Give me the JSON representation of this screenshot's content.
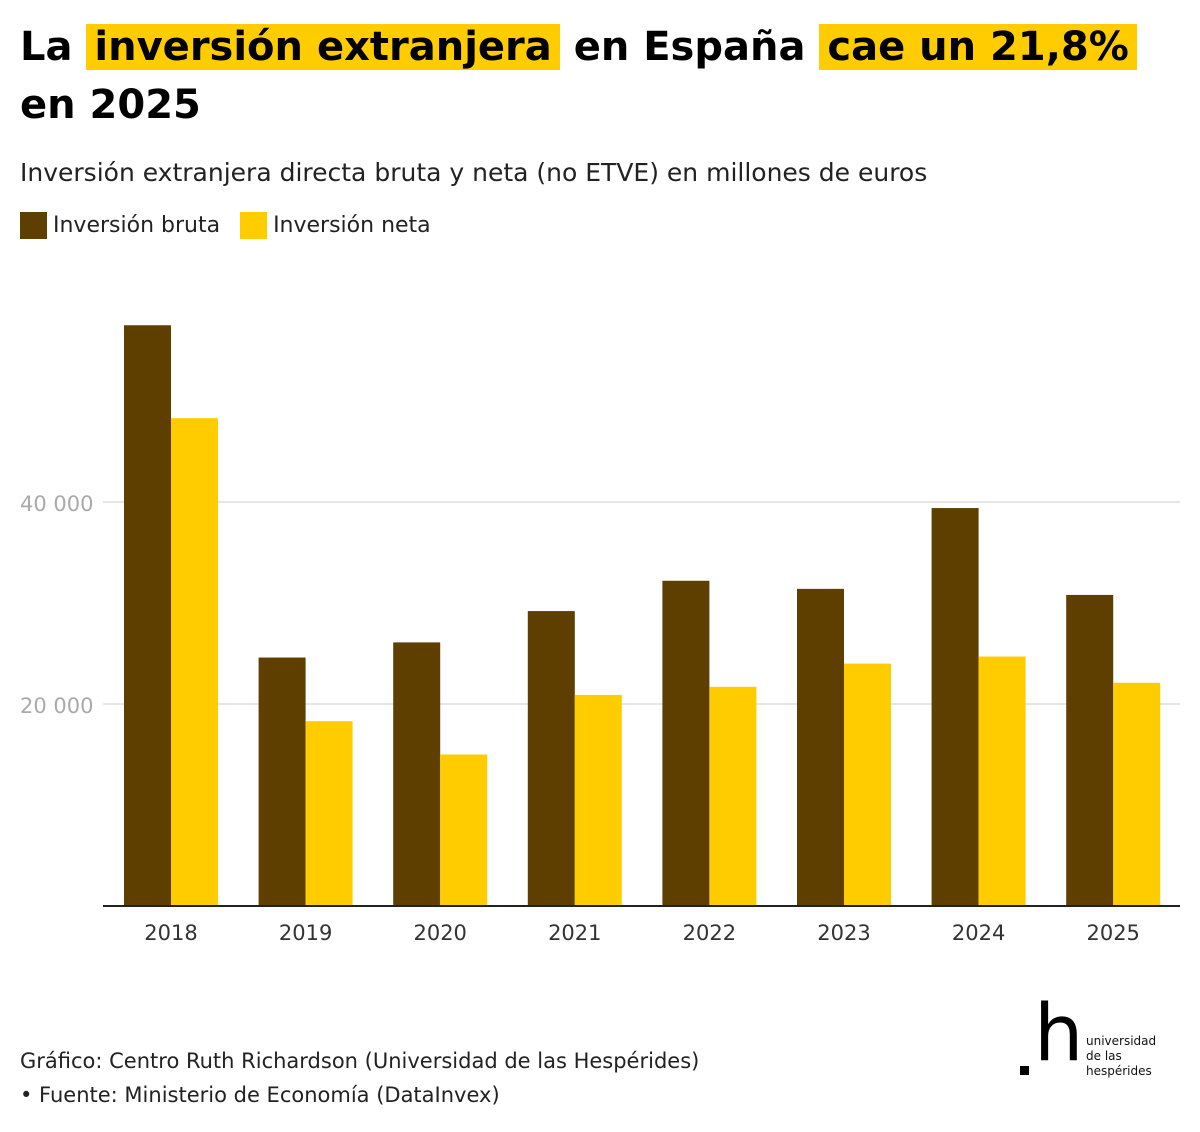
{
  "headline": {
    "p1": "La",
    "p2": "inversión extranjera",
    "p3": "en España",
    "p4": "cae un 21,8%",
    "p5": "en 2025"
  },
  "subtitle": "Inversión extranjera directa bruta y neta (no ETVE) en millones de euros",
  "colors": {
    "bruta": "#5e3f00",
    "neta": "#ffcc00",
    "highlight": "#ffcc00"
  },
  "chart_data": {
    "type": "bar",
    "categories": [
      "2018",
      "2019",
      "2020",
      "2021",
      "2022",
      "2023",
      "2024",
      "2025"
    ],
    "series": [
      {
        "name": "Inversión bruta",
        "values": [
          57500,
          24600,
          26100,
          29200,
          32200,
          31400,
          39400,
          30800
        ]
      },
      {
        "name": "Inversión neta",
        "values": [
          48300,
          18300,
          15000,
          20900,
          21700,
          24000,
          24700,
          22100
        ]
      }
    ],
    "yticks": [
      20000,
      40000
    ],
    "ytick_labels": [
      "20 000",
      "40 000"
    ],
    "ylim": [
      0,
      58000
    ],
    "grid": true,
    "legend_position": "top-left"
  },
  "footer": {
    "line1": "Gráfico: Centro Ruth Richardson (Universidad de las Hespérides)",
    "line2": "• Fuente: Ministerio de Economía (DataInvex)"
  },
  "logo": {
    "mark": "h",
    "text": "universidad de las hespérides"
  }
}
